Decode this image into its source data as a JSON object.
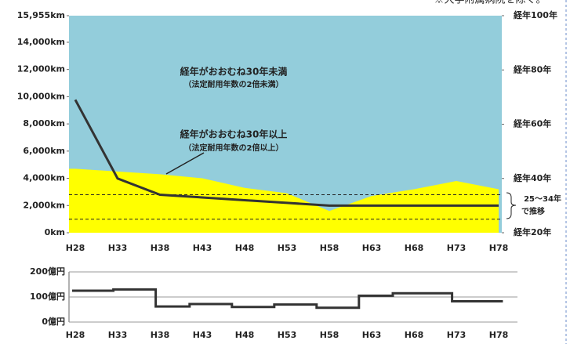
{
  "chart_data": [
    {
      "type": "area_line",
      "annotations": [
        "経年がおおむね30年未満",
        "（法定耐用年数の2倍未満）",
        "経年がおおむね30年以上",
        "（法定耐用年数の2倍以上）",
        "25～34年",
        "で推移",
        "※大学附属病院を除く。"
      ],
      "categories": [
        "H28",
        "H33",
        "H38",
        "H43",
        "H48",
        "H53",
        "H58",
        "H63",
        "H68",
        "H73",
        "H78"
      ],
      "series": [
        {
          "color": "#ffff00",
          "values": [
            4700,
            4500,
            4300,
            4000,
            3300,
            2900,
            1600,
            2700,
            3200,
            3800,
            3200
          ]
        },
        {
          "color": "#333333",
          "axis": "y2",
          "values": [
            69,
            40,
            34,
            33,
            32,
            31,
            30,
            30,
            30,
            30,
            30
          ]
        }
      ],
      "background_color": "#93cddb",
      "ylim": [
        0,
        15955
      ],
      "yticks": [
        {
          "value": 0,
          "label": "0km"
        },
        {
          "value": 2000,
          "label": "2,000km"
        },
        {
          "value": 4000,
          "label": "4,000km"
        },
        {
          "value": 6000,
          "label": "6,000km"
        },
        {
          "value": 8000,
          "label": "8,000km"
        },
        {
          "value": 10000,
          "label": "10,000km"
        },
        {
          "value": 12000,
          "label": "12,000km"
        },
        {
          "value": 14000,
          "label": "14,000km"
        },
        {
          "value": 15955,
          "label": "15,955km"
        }
      ],
      "y2lim": [
        20,
        100
      ],
      "y2ticks": [
        {
          "value": 20,
          "label": "経年20年"
        },
        {
          "value": 40,
          "label": "経年40年"
        },
        {
          "value": 60,
          "label": "経年60年"
        },
        {
          "value": 80,
          "label": "経年80年"
        },
        {
          "value": 100,
          "label": "経年100年"
        }
      ],
      "reference_lines": [
        25,
        34
      ]
    },
    {
      "type": "step_line",
      "categories": [
        "H28",
        null,
        null,
        null,
        null,
        "H33",
        null,
        null,
        null,
        null,
        "H38",
        null,
        null,
        null,
        null,
        "H43",
        null,
        null,
        null,
        null,
        "H48",
        null,
        null,
        null,
        null,
        "H53",
        null,
        null,
        null,
        null,
        "H58",
        null,
        null,
        null,
        null,
        "H63",
        null,
        null,
        null,
        null,
        "H68",
        null,
        null,
        null,
        null,
        "H73",
        null,
        null,
        null,
        null,
        "H78"
      ],
      "color": "#333333",
      "values": [
        125,
        125,
        125,
        125,
        125,
        130,
        130,
        130,
        130,
        130,
        62,
        62,
        62,
        62,
        72,
        72,
        72,
        72,
        72,
        60,
        60,
        60,
        60,
        60,
        70,
        70,
        70,
        70,
        70,
        57,
        57,
        57,
        57,
        57,
        105,
        105,
        105,
        105,
        115,
        115,
        115,
        115,
        115,
        115,
        115,
        83,
        83,
        83,
        83,
        83,
        83
      ],
      "ylim": [
        0,
        200
      ],
      "yticks": [
        {
          "value": 0,
          "label": "0億円"
        },
        {
          "value": 100,
          "label": "100億円"
        },
        {
          "value": 200,
          "label": "200億円"
        }
      ]
    }
  ]
}
